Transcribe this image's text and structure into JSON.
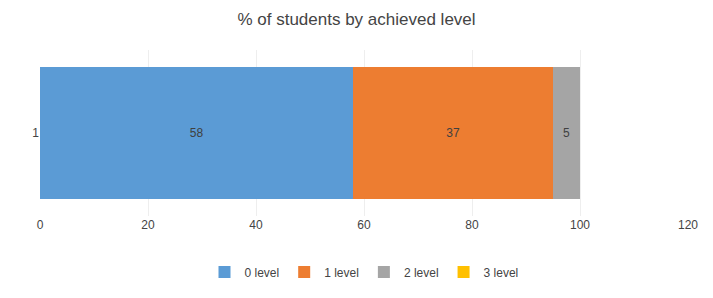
{
  "chart_data": {
    "type": "bar",
    "orientation": "horizontal",
    "stacked": true,
    "title": "% of students by achieved level",
    "categories": [
      "1"
    ],
    "series": [
      {
        "name": "0 level",
        "color": "#5B9BD5",
        "values": [
          58
        ]
      },
      {
        "name": "1 level",
        "color": "#ED7D31",
        "values": [
          37
        ]
      },
      {
        "name": "2 level",
        "color": "#A5A5A5",
        "values": [
          5
        ]
      },
      {
        "name": "3 level",
        "color": "#FFC000",
        "values": [
          0
        ]
      }
    ],
    "xlim": [
      0,
      120
    ],
    "xticks": [
      0,
      20,
      40,
      60,
      80,
      100,
      120
    ],
    "grid": true,
    "legend": "bottom",
    "data_labels": true
  }
}
